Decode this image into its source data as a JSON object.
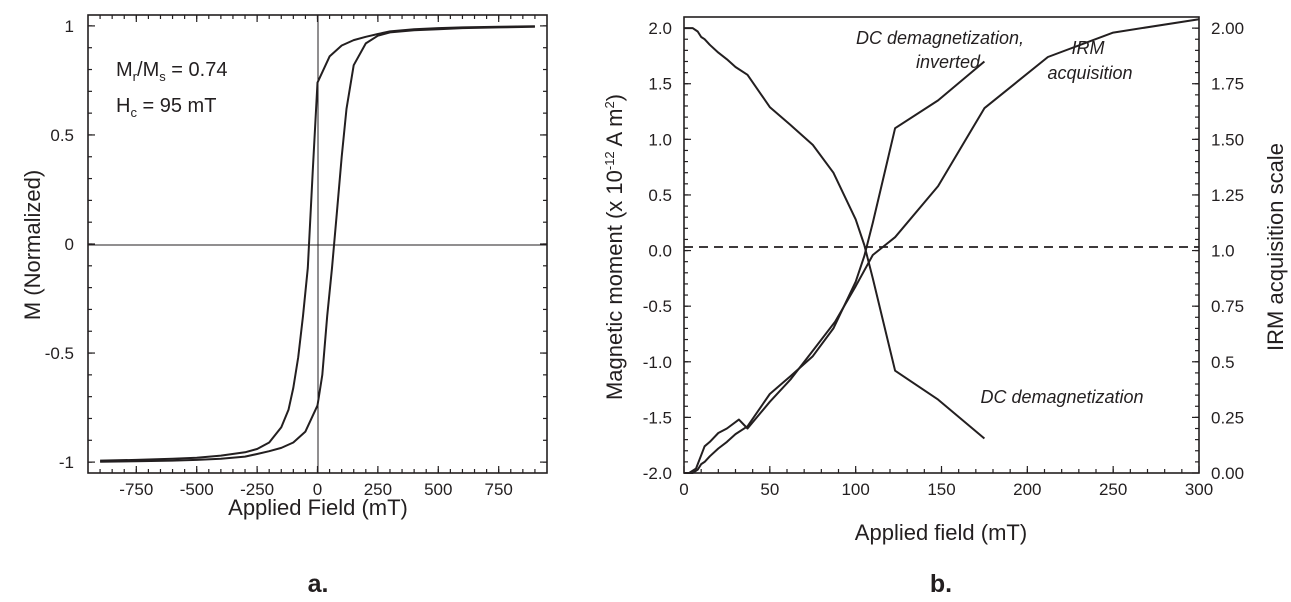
{
  "colors": {
    "ink": "#231f20",
    "background": "#ffffff"
  },
  "chart_data": [
    {
      "panel": "a.",
      "type": "line",
      "xlabel": "Applied Field (mT)",
      "ylabel": "M (Normalized)",
      "xlim": [
        -950,
        950
      ],
      "ylim": [
        -1.05,
        1.05
      ],
      "x_ticks": [
        -750,
        -500,
        -250,
        0,
        250,
        500,
        750
      ],
      "y_ticks": [
        -1,
        -0.5,
        0,
        0.5,
        1
      ],
      "zero_lines": true,
      "annotations": [
        {
          "base": "M",
          "sub": "r",
          "mid": "/M",
          "sub2": "s",
          "tail": " = 0.74"
        },
        {
          "base": "H",
          "sub": "c",
          "tail": " = 95 mT"
        }
      ],
      "series": [
        {
          "x": [
            -900,
            -750,
            -600,
            -500,
            -400,
            -300,
            -250,
            -200,
            -150,
            -120,
            -100,
            -80,
            -60,
            -40,
            -20,
            0,
            50,
            100,
            150,
            200,
            250,
            300,
            400,
            500,
            600,
            750,
            900
          ],
          "y": [
            -0.993,
            -0.99,
            -0.985,
            -0.98,
            -0.97,
            -0.955,
            -0.94,
            -0.91,
            -0.84,
            -0.76,
            -0.66,
            -0.52,
            -0.33,
            -0.11,
            0.33,
            0.74,
            0.86,
            0.91,
            0.935,
            0.95,
            0.963,
            0.975,
            0.985,
            0.99,
            0.993,
            0.996,
            0.998
          ]
        },
        {
          "x": [
            -900,
            -750,
            -600,
            -500,
            -400,
            -300,
            -250,
            -200,
            -150,
            -100,
            -50,
            0,
            20,
            40,
            60,
            80,
            100,
            120,
            150,
            200,
            250,
            300,
            400,
            500,
            600,
            750,
            900
          ],
          "y": [
            -0.998,
            -0.996,
            -0.993,
            -0.99,
            -0.985,
            -0.975,
            -0.963,
            -0.95,
            -0.935,
            -0.91,
            -0.86,
            -0.74,
            -0.6,
            -0.33,
            -0.11,
            0.14,
            0.4,
            0.62,
            0.82,
            0.92,
            0.955,
            0.97,
            0.98,
            0.985,
            0.99,
            0.993,
            0.996
          ]
        }
      ]
    },
    {
      "panel": "b.",
      "type": "line",
      "xlabel": "Applied field (mT)",
      "ylabel": "Magnetic moment (x 10",
      "ylabel_sup": "-12",
      "ylabel_tail": " A m",
      "ylabel_sup2": "2",
      "ylabel_end": ")",
      "y2label": "IRM acquisition scale",
      "xlim": [
        0,
        300
      ],
      "ylim": [
        -2.0,
        2.1
      ],
      "y2lim": [
        0,
        2.05
      ],
      "x_ticks": [
        0,
        50,
        100,
        150,
        200,
        250,
        300
      ],
      "y_ticks": [
        "2.0",
        "1.5",
        "1.0",
        "0.5",
        "0.0",
        "-0.5",
        "-1.0",
        "-1.5",
        "-2.0"
      ],
      "y2_ticks": [
        "2.00",
        "1.75",
        "1.50",
        "1.25",
        "1.0",
        "0.75",
        "0.5",
        "0.25",
        "0.00"
      ],
      "dashed_zero_line": true,
      "annotations": [
        "DC demagnetization,",
        "inverted",
        "IRM",
        "acquisition",
        "DC demagnetization"
      ],
      "series": [
        {
          "name": "DC demagnetization",
          "x": [
            0,
            2,
            5,
            8,
            10,
            12,
            15,
            20,
            25,
            30,
            37,
            50,
            62,
            75,
            87,
            100,
            105,
            110,
            123,
            148,
            175
          ],
          "y": [
            2.0,
            2.0,
            2.0,
            1.97,
            1.92,
            1.9,
            1.85,
            1.78,
            1.72,
            1.65,
            1.58,
            1.29,
            1.13,
            0.95,
            0.7,
            0.28,
            0.05,
            -0.25,
            -1.08,
            -1.34,
            -1.69
          ]
        },
        {
          "name": "DC demagnetization, inverted",
          "x": [
            0,
            2,
            5,
            8,
            10,
            12,
            15,
            20,
            25,
            30,
            37,
            50,
            62,
            75,
            87,
            100,
            105,
            110,
            123,
            148,
            175
          ],
          "y": [
            -2.0,
            -2.0,
            -2.0,
            -1.97,
            -1.92,
            -1.9,
            -1.85,
            -1.78,
            -1.72,
            -1.65,
            -1.58,
            -1.29,
            -1.13,
            -0.95,
            -0.7,
            -0.28,
            -0.05,
            0.25,
            1.1,
            1.35,
            1.7
          ]
        },
        {
          "name": "IRM acquisition",
          "x": [
            0,
            3,
            7,
            10,
            12,
            15,
            20,
            25,
            32,
            37,
            50,
            62,
            75,
            88,
            100,
            110,
            123,
            148,
            175,
            212,
            250,
            300
          ],
          "y": [
            0.0,
            0.0,
            0.02,
            0.08,
            0.12,
            0.14,
            0.18,
            0.2,
            0.24,
            0.2,
            0.32,
            0.42,
            0.55,
            0.68,
            0.84,
            0.98,
            1.06,
            1.29,
            1.64,
            1.87,
            1.98,
            2.04
          ]
        }
      ]
    }
  ]
}
